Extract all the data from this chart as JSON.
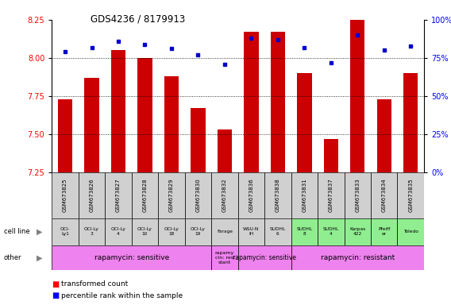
{
  "title": "GDS4236 / 8179913",
  "samples": [
    "GSM673825",
    "GSM673826",
    "GSM673827",
    "GSM673828",
    "GSM673829",
    "GSM673830",
    "GSM673832",
    "GSM673836",
    "GSM673838",
    "GSM673831",
    "GSM673837",
    "GSM673833",
    "GSM673834",
    "GSM673835"
  ],
  "red_values": [
    7.73,
    7.87,
    8.05,
    8.0,
    7.88,
    7.67,
    7.53,
    8.17,
    8.17,
    7.9,
    7.47,
    8.25,
    7.73,
    7.9
  ],
  "blue_values": [
    79,
    82,
    86,
    84,
    81,
    77,
    71,
    88,
    87,
    82,
    72,
    90,
    80,
    83
  ],
  "cell_lines": [
    "OCI-\nLy1",
    "OCI-Ly\n3",
    "OCI-Ly\n4",
    "OCI-Ly\n10",
    "OCI-Ly\n18",
    "OCI-Ly\n19",
    "Farage",
    "WSU-N\nIH",
    "SUDHL\n6",
    "SUDHL\n8",
    "SUDHL\n4",
    "Karpas\n422",
    "Pfeiff\ner",
    "Toledo"
  ],
  "cell_line_colors": [
    "#d0d0d0",
    "#d0d0d0",
    "#d0d0d0",
    "#d0d0d0",
    "#d0d0d0",
    "#d0d0d0",
    "#d0d0d0",
    "#d0d0d0",
    "#d0d0d0",
    "#90ee90",
    "#90ee90",
    "#90ee90",
    "#90ee90",
    "#90ee90"
  ],
  "other_groups": [
    {
      "label": "rapamycin: sensitive",
      "start": 0,
      "end": 6,
      "color": "#ee82ee"
    },
    {
      "label": "rapamy\ncin: resi\nstant",
      "start": 6,
      "end": 7,
      "color": "#ee82ee"
    },
    {
      "label": "rapamycin: sensitive",
      "start": 7,
      "end": 9,
      "color": "#ee82ee"
    },
    {
      "label": "rapamycin: resistant",
      "start": 9,
      "end": 14,
      "color": "#ee82ee"
    }
  ],
  "ylim_left": [
    7.25,
    8.25
  ],
  "ylim_right": [
    0,
    100
  ],
  "yticks_left": [
    7.25,
    7.5,
    7.75,
    8.0,
    8.25
  ],
  "yticks_right": [
    0,
    25,
    50,
    75,
    100
  ],
  "bar_color": "#cc0000",
  "dot_color": "#0000cc",
  "bg_color": "#ffffff",
  "grid_lines": [
    7.5,
    7.75,
    8.0
  ],
  "farage_color": "#d0d0d0",
  "green_color": "#90ee90"
}
